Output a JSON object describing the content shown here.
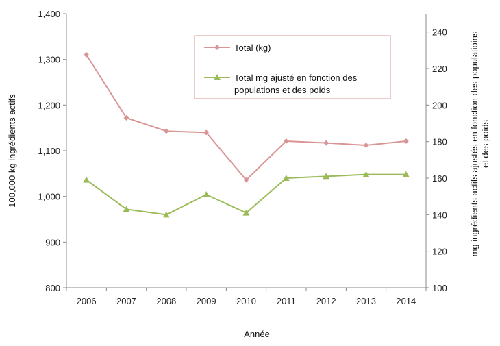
{
  "chart_data": {
    "type": "line",
    "categories": [
      "2006",
      "2007",
      "2008",
      "2009",
      "2010",
      "2011",
      "2012",
      "2013",
      "2014"
    ],
    "series": [
      {
        "name": "Total (kg)",
        "axis": "left",
        "color": "#d99594",
        "marker": "diamond",
        "values": [
          1310,
          1172,
          1143,
          1140,
          1036,
          1121,
          1117,
          1112,
          1121
        ]
      },
      {
        "name": "Total mg ajusté en fonction des populations et des poids",
        "axis": "right",
        "color": "#9bbb59",
        "marker": "triangle",
        "values": [
          159,
          143,
          140,
          151,
          141,
          160,
          161,
          162,
          162
        ]
      }
    ],
    "xlabel": "Année",
    "ylabel_left": "100,000 kg ingrédients actifs",
    "ylabel_right_lines": [
      "mg ingrédients actifs ajustés en fonction des populatioins",
      "et des poids"
    ],
    "ylim_left": [
      800,
      1400
    ],
    "yticks_left": [
      "800",
      "900",
      "1,000",
      "1,100",
      "1,200",
      "1,300",
      "1,400"
    ],
    "ylim_right": [
      100,
      250
    ],
    "yticks_right": [
      "100",
      "120",
      "140",
      "160",
      "180",
      "200",
      "220",
      "240"
    ],
    "legend": {
      "placement": "top-center",
      "entries": [
        {
          "lines": [
            "Total (kg)"
          ]
        },
        {
          "lines": [
            "Total mg ajusté en fonction des",
            "populations et des poids"
          ]
        }
      ]
    },
    "grid": false
  }
}
